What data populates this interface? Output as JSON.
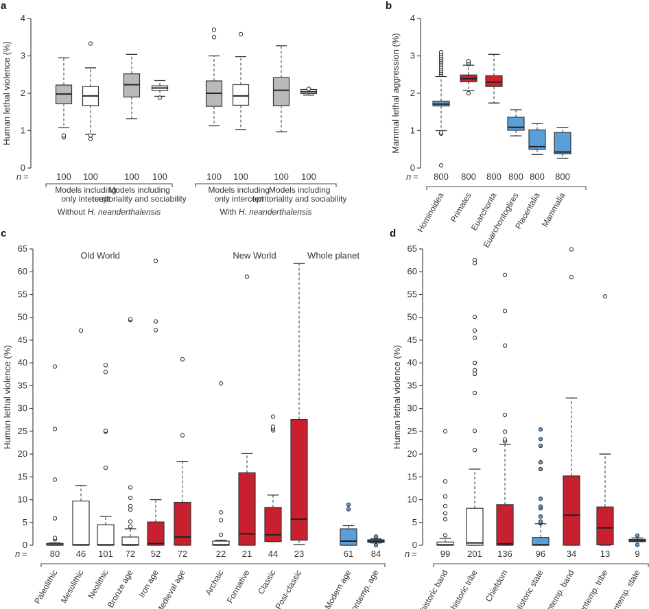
{
  "colors": {
    "grey": "#b9b9b9",
    "white": "#ffffff",
    "red": "#c8202f",
    "blue": "#5a9fd8",
    "ink": "#333333"
  },
  "chart_data": [
    {
      "panel": "a",
      "type": "box",
      "ylabel": "Human lethal violence (%)",
      "ylim": [
        0,
        4
      ],
      "yticks": [
        0,
        1,
        2,
        3,
        4
      ],
      "n_label": "n =",
      "groups": [
        {
          "label": "Without H. neanderthalensis",
          "label_prefix": "Without ",
          "label_italic": "H. neanderthalensis",
          "subgroups": [
            {
              "label_lines": [
                "Models including",
                "only intercept"
              ]
            },
            {
              "label_lines": [
                "Models including",
                "territoriality and sociability"
              ]
            }
          ]
        },
        {
          "label": "With H. neanderthalensis",
          "label_prefix": "With ",
          "label_italic": "H. neanderthalensis",
          "subgroups": [
            {
              "label_lines": [
                "Models including",
                "only intercept"
              ]
            },
            {
              "label_lines": [
                "Models including",
                "territoriality and sociability"
              ]
            }
          ]
        }
      ],
      "boxes": [
        {
          "n": "100",
          "fill": "grey",
          "low": 1.08,
          "q1": 1.72,
          "median": 1.98,
          "q3": 2.22,
          "high": 2.95,
          "outliers": [
            0.82,
            0.87
          ]
        },
        {
          "n": "100",
          "fill": "white",
          "low": 0.9,
          "q1": 1.67,
          "median": 1.93,
          "q3": 2.18,
          "high": 2.68,
          "outliers": [
            3.33,
            0.87,
            0.78
          ]
        },
        {
          "n": "100",
          "fill": "grey",
          "low": 1.32,
          "q1": 1.9,
          "median": 2.23,
          "q3": 2.52,
          "high": 3.04,
          "outliers": []
        },
        {
          "n": "100",
          "fill": "white",
          "low": 1.92,
          "q1": 2.08,
          "median": 2.14,
          "q3": 2.2,
          "high": 2.34,
          "outliers": [
            1.88
          ]
        },
        {
          "n": "100",
          "fill": "grey",
          "low": 1.13,
          "q1": 1.65,
          "median": 2.0,
          "q3": 2.33,
          "high": 3.0,
          "outliers": [
            3.7,
            3.5
          ]
        },
        {
          "n": "100",
          "fill": "white",
          "low": 1.03,
          "q1": 1.68,
          "median": 1.93,
          "q3": 2.23,
          "high": 2.98,
          "outliers": [
            3.58
          ]
        },
        {
          "n": "100",
          "fill": "grey",
          "low": 0.97,
          "q1": 1.67,
          "median": 2.08,
          "q3": 2.42,
          "high": 3.27,
          "outliers": []
        },
        {
          "n": "100",
          "fill": "white",
          "low": 1.95,
          "q1": 1.99,
          "median": 2.04,
          "q3": 2.1,
          "high": 2.1,
          "outliers": [
            2.12
          ]
        }
      ]
    },
    {
      "panel": "b",
      "type": "box",
      "ylabel": "Mammal lethal aggression (%)",
      "ylim": [
        0,
        4
      ],
      "yticks": [
        0,
        1,
        2,
        3,
        4
      ],
      "n_label": "n =",
      "categories": [
        "Hominoidea",
        "Primates",
        "Euarchonta",
        "Euarchontoglires",
        "Placentalia",
        "Mammalia"
      ],
      "boxes": [
        {
          "n": "800",
          "fill": "blue",
          "low": 1.0,
          "q1": 1.66,
          "median": 1.71,
          "q3": 1.79,
          "high": 2.45,
          "outliers": [
            2.5,
            2.55,
            2.6,
            2.65,
            2.7,
            2.75,
            2.8,
            2.85,
            2.9,
            2.95,
            3.0,
            3.05,
            3.1,
            0.92,
            0.95,
            0.07
          ]
        },
        {
          "n": "800",
          "fill": "red",
          "low": 2.07,
          "q1": 2.31,
          "median": 2.39,
          "q3": 2.49,
          "high": 2.75,
          "outliers": [
            2.78,
            2.82,
            2.86,
            2.0
          ]
        },
        {
          "n": "800",
          "fill": "red",
          "low": 1.74,
          "q1": 2.18,
          "median": 2.3,
          "q3": 2.47,
          "high": 3.04,
          "outliers": []
        },
        {
          "n": "800",
          "fill": "blue",
          "low": 0.86,
          "q1": 1.01,
          "median": 1.09,
          "q3": 1.36,
          "high": 1.56,
          "outliers": []
        },
        {
          "n": "800",
          "fill": "blue",
          "low": 0.36,
          "q1": 0.5,
          "median": 0.57,
          "q3": 1.02,
          "high": 1.19,
          "outliers": []
        },
        {
          "n": "800",
          "fill": "blue",
          "low": 0.26,
          "q1": 0.38,
          "median": 0.43,
          "q3": 0.95,
          "high": 1.09,
          "outliers": []
        }
      ]
    },
    {
      "panel": "c",
      "type": "box",
      "ylabel": "Human lethal violence (%)",
      "ylim": [
        0,
        65
      ],
      "yticks": [
        0,
        5,
        10,
        15,
        20,
        25,
        30,
        35,
        40,
        45,
        50,
        55,
        60,
        65
      ],
      "n_label": "n =",
      "region_labels": [
        "Old World",
        "New World",
        "Whole planet"
      ],
      "categories": [
        "Paleolithic",
        "Mesolithic",
        "Neolithic",
        "Bronze age",
        "Iron age",
        "Medieval age",
        "Archaic",
        "Formative",
        "Classic",
        "Post-classic",
        "Modern age",
        "Contemp. age"
      ],
      "boxes": [
        {
          "n": "80",
          "fill": "white",
          "low": 0,
          "q1": 0,
          "median": 0.1,
          "q3": 0.4,
          "high": 0.5,
          "outliers": [
            1.3,
            1.6,
            5.9,
            14.4,
            25.5,
            39.2
          ]
        },
        {
          "n": "46",
          "fill": "white",
          "low": 0,
          "q1": 0,
          "median": 0.1,
          "q3": 9.7,
          "high": 13.1,
          "outliers": [
            47.1
          ]
        },
        {
          "n": "101",
          "fill": "white",
          "low": 0,
          "q1": 0,
          "median": 0.1,
          "q3": 4.5,
          "high": 6.3,
          "outliers": [
            17.0,
            24.9,
            25.1,
            38.0,
            39.5
          ]
        },
        {
          "n": "72",
          "fill": "white",
          "low": 0,
          "q1": 0,
          "median": 0.1,
          "q3": 1.8,
          "high": 3.6,
          "outliers": [
            4.1,
            5.2,
            7.8,
            8.6,
            10.4,
            12.7,
            49.4,
            49.6
          ]
        },
        {
          "n": "52",
          "fill": "red",
          "low": 0,
          "q1": 0,
          "median": 0.4,
          "q3": 5.1,
          "high": 10.0,
          "outliers": [
            47.2,
            49.1,
            62.4
          ]
        },
        {
          "n": "72",
          "fill": "red",
          "low": 0,
          "q1": 0,
          "median": 1.8,
          "q3": 9.4,
          "high": 18.4,
          "outliers": [
            24.1,
            40.8
          ]
        },
        {
          "n": "22",
          "fill": "white",
          "low": 0,
          "q1": 0,
          "median": 0.1,
          "q3": 0.9,
          "high": 1.1,
          "outliers": [
            2.3,
            5.5,
            7.2,
            35.5
          ]
        },
        {
          "n": "21",
          "fill": "red",
          "low": 0,
          "q1": 0,
          "median": 2.5,
          "q3": 15.9,
          "high": 20.1,
          "outliers": [
            58.9
          ]
        },
        {
          "n": "44",
          "fill": "red",
          "low": 0.8,
          "q1": 0.8,
          "median": 2.3,
          "q3": 8.3,
          "high": 11.0,
          "outliers": [
            25.2,
            25.6,
            26.0,
            28.2
          ]
        },
        {
          "n": "23",
          "fill": "red",
          "low": 0.1,
          "q1": 1.1,
          "median": 5.7,
          "q3": 27.6,
          "high": 61.8,
          "outliers": []
        },
        {
          "n": "61",
          "fill": "blue",
          "low": 0,
          "q1": 0,
          "median": 0.9,
          "q3": 3.6,
          "high": 4.3,
          "outliers": [
            7.9,
            8.9
          ]
        },
        {
          "n": "84",
          "fill": "blue",
          "low": 0.5,
          "q1": 0.6,
          "median": 0.9,
          "q3": 1.2,
          "high": 1.4,
          "outliers": [
            1.9,
            0.0
          ]
        }
      ]
    },
    {
      "panel": "d",
      "type": "box",
      "ylabel": "Human lethal violence (%)",
      "ylim": [
        0,
        65
      ],
      "yticks": [
        0,
        5,
        10,
        15,
        20,
        25,
        30,
        35,
        40,
        45,
        50,
        55,
        60,
        65
      ],
      "n_label": "n =",
      "categories": [
        "Prehistoric band",
        "Prehistoric tribe",
        "Chiefdom",
        "Historic state",
        "Contemp. band",
        "Contemp. tribe",
        "Contemp. state"
      ],
      "boxes": [
        {
          "n": "99",
          "fill": "white",
          "low": 0,
          "q1": 0,
          "median": 0.1,
          "q3": 0.7,
          "high": 1.5,
          "outliers": [
            2.2,
            5.7,
            7.0,
            8.6,
            10.7,
            14.0,
            25.0
          ]
        },
        {
          "n": "201",
          "fill": "white",
          "low": 0,
          "q1": 0,
          "median": 0.5,
          "q3": 8.1,
          "high": 16.7,
          "outliers": [
            20.9,
            25.1,
            33.4,
            37.6,
            38.4,
            40.0,
            45.5,
            47.1,
            50.1,
            61.9,
            62.6
          ]
        },
        {
          "n": "136",
          "fill": "red",
          "low": 0,
          "q1": 0,
          "median": 0.3,
          "q3": 8.9,
          "high": 22.1,
          "outliers": [
            22.8,
            23.2,
            24.9,
            28.6,
            43.8,
            51.4,
            59.3
          ]
        },
        {
          "n": "96",
          "fill": "blue",
          "low": 0,
          "q1": 0,
          "median": 0.1,
          "q3": 1.7,
          "high": 4.7,
          "outliers": [
            4.8,
            5.0,
            5.2,
            6.3,
            8.1,
            8.5,
            10.2,
            16.7,
            18.2,
            21.8,
            23.3,
            25.4
          ]
        },
        {
          "n": "34",
          "fill": "red",
          "low": 0,
          "q1": 0,
          "median": 6.6,
          "q3": 15.2,
          "high": 32.3,
          "outliers": [
            58.8,
            64.9
          ]
        },
        {
          "n": "13",
          "fill": "red",
          "low": 0,
          "q1": 0.1,
          "median": 3.8,
          "q3": 8.4,
          "high": 20.0,
          "outliers": [
            54.6
          ]
        },
        {
          "n": "9",
          "fill": "blue",
          "low": 0.8,
          "q1": 0.8,
          "median": 1.0,
          "q3": 1.3,
          "high": 1.6,
          "outliers": [
            2.1,
            0.1
          ]
        }
      ]
    }
  ],
  "panel_labels": [
    "a",
    "b",
    "c",
    "d"
  ]
}
